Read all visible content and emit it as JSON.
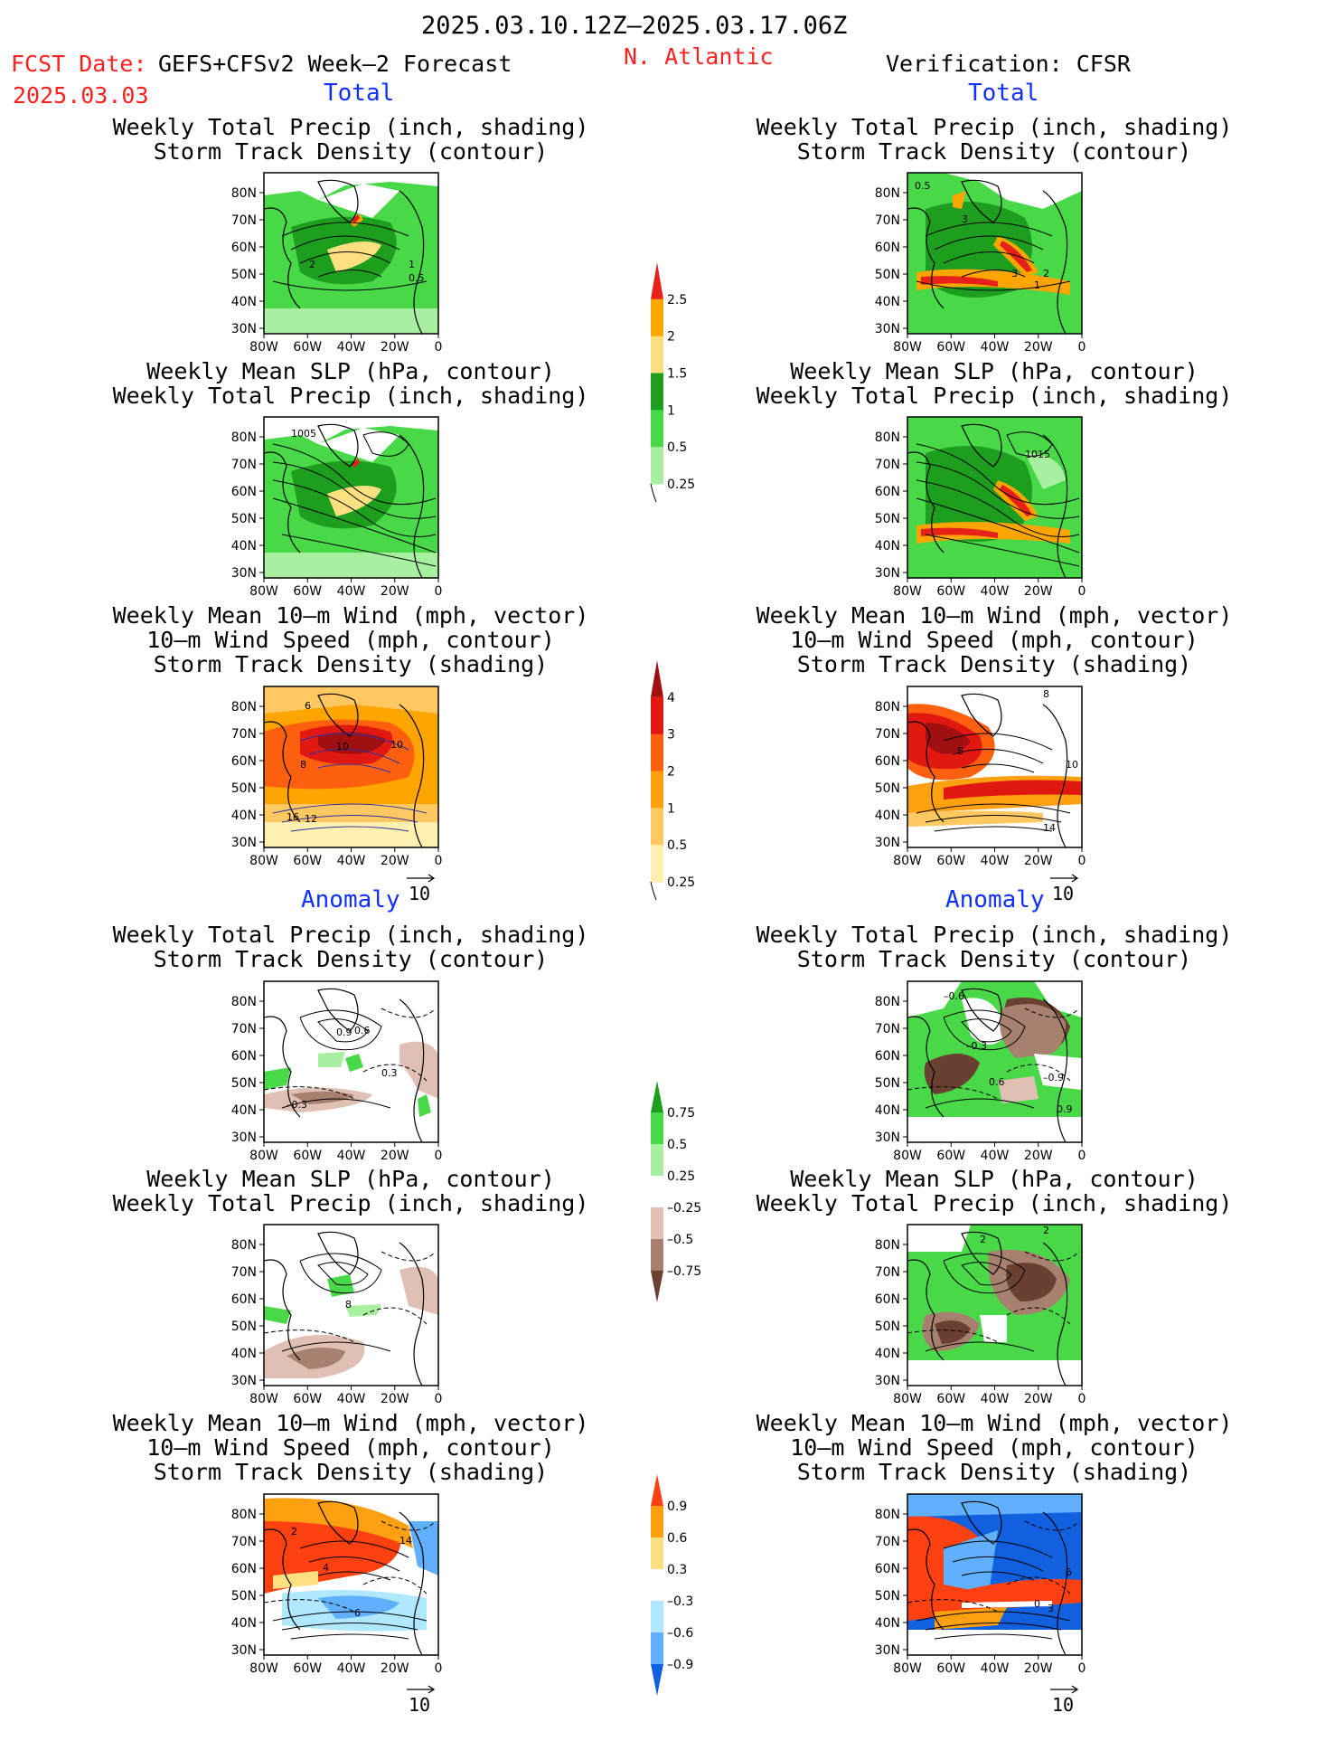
{
  "header": {
    "period": "2025.03.10.12Z–2025.03.17.06Z",
    "fcst_label": "FCST Date:",
    "model": "GEFS+CFSv2 Week–2 Forecast",
    "fcst_date": "2025.03.03",
    "region": "N. Atlantic",
    "verification": "Verification: CFSR"
  },
  "sections": {
    "total": "Total",
    "anomaly": "Anomaly"
  },
  "titles": {
    "precip_storm": [
      "Weekly Total Precip (inch, shading)",
      "Storm Track Density (contour)"
    ],
    "slp_precip": [
      "Weekly Mean SLP (hPa, contour)",
      "Weekly Total Precip (inch, shading)"
    ],
    "wind_storm": [
      "Weekly Mean 10–m Wind (mph, vector)",
      "10–m Wind Speed (mph, contour)",
      "Storm Track Density (shading)"
    ]
  },
  "axes": {
    "lat_ticks": [
      "80N",
      "70N",
      "60N",
      "50N",
      "40N",
      "30N"
    ],
    "lon_ticks": [
      "80W",
      "60W",
      "40W",
      "20W",
      "0"
    ]
  },
  "vector_ref": "10",
  "colorbars": {
    "precip_total": {
      "labels": [
        "2.5",
        "2",
        "1.5",
        "1",
        "0.5",
        "0.25"
      ],
      "colors": [
        "#e8201a",
        "#ffa500",
        "#ffe080",
        "#1e9e1e",
        "#48d848",
        "#a8f0a0"
      ]
    },
    "storm_total": {
      "labels": [
        "4",
        "3",
        "2",
        "1",
        "0.5",
        "0.25"
      ],
      "colors": [
        "#a01010",
        "#e01810",
        "#ff6010",
        "#ffa010",
        "#ffc860",
        "#fff0b0"
      ]
    },
    "precip_anom": {
      "labels": [
        "0.75",
        "0.5",
        "0.25",
        "–0.25",
        "–0.5",
        "–0.75"
      ],
      "colors": [
        "#1e9e1e",
        "#48d848",
        "#a8f0a0",
        "#ffffff",
        "#e0c0b4",
        "#a88070",
        "#6a4032"
      ]
    },
    "storm_anom": {
      "labels": [
        "0.9",
        "0.6",
        "0.3",
        "–0.3",
        "–0.6",
        "–0.9"
      ],
      "colors": [
        "#ff4010",
        "#ffa010",
        "#ffe080",
        "#ffffff",
        "#b0e8ff",
        "#60b0ff",
        "#1060e0"
      ]
    }
  },
  "contour_labels": {
    "fp": [
      "2",
      "1",
      "0.5"
    ],
    "vp": [
      "3",
      "2",
      "1",
      "0.5",
      "3"
    ],
    "fs": [
      "1005"
    ],
    "vs": [
      "1015"
    ],
    "fw": [
      "6",
      "10",
      "10",
      "8",
      "16",
      "12"
    ],
    "vw": [
      "8",
      "8",
      "10",
      "14"
    ],
    "fpa": [
      "0.9",
      "0.6",
      "0.3",
      "–0.3"
    ],
    "vpa": [
      "–0.6",
      "–0.3",
      "–0.9",
      "0.6",
      "0.9"
    ],
    "fsa": [
      "8"
    ],
    "vsa": [
      "2",
      "2"
    ],
    "fwa": [
      "2",
      "4",
      "14",
      "6"
    ],
    "vwa": [
      "6",
      "0",
      "3"
    ]
  },
  "colors": {
    "green": "#48d848",
    "darkgreen": "#1e9e1e",
    "orange": "#ffa500",
    "red": "#e8201a",
    "brown": "#6a4032",
    "blue": "#1060e0"
  }
}
